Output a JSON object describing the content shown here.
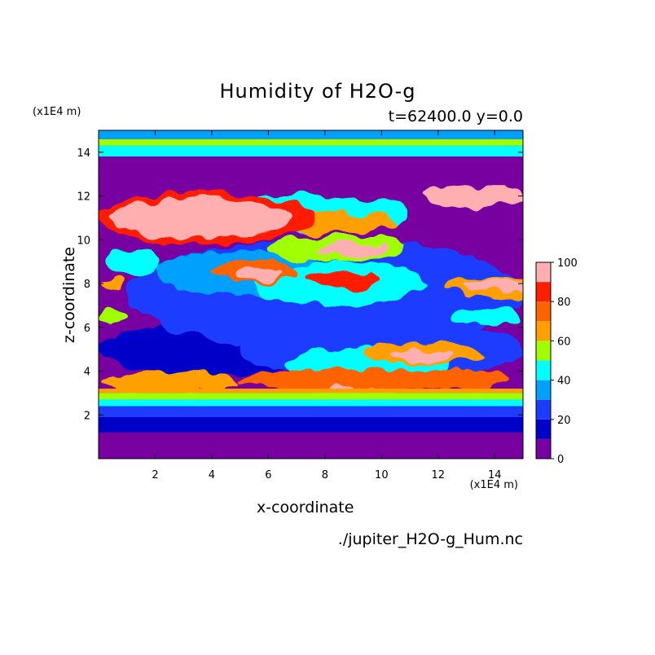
{
  "chart_data": {
    "type": "heatmap",
    "title": "Humidity of H2O-g",
    "subtitle": "t=62400.0 y=0.0",
    "xlabel": "x-coordinate",
    "ylabel": "z-coordinate",
    "x_unit": "(x1E4 m)",
    "y_unit": "(x1E4 m)",
    "xlim": [
      0,
      15
    ],
    "ylim": [
      0,
      15
    ],
    "x_ticks": [
      2,
      4,
      6,
      8,
      10,
      12,
      14
    ],
    "y_ticks": [
      2,
      4,
      6,
      8,
      10,
      12,
      14
    ],
    "colorbar": {
      "min": 0,
      "max": 100,
      "ticks": [
        0,
        20,
        40,
        60,
        80,
        100
      ],
      "levels": [
        {
          "from": 0,
          "to": 10,
          "color": "#7800a0"
        },
        {
          "from": 10,
          "to": 20,
          "color": "#0000c8"
        },
        {
          "from": 20,
          "to": 30,
          "color": "#1e3cff"
        },
        {
          "from": 30,
          "to": 40,
          "color": "#00a0ff"
        },
        {
          "from": 40,
          "to": 50,
          "color": "#00ffff"
        },
        {
          "from": 50,
          "to": 60,
          "color": "#a0ff00"
        },
        {
          "from": 60,
          "to": 70,
          "color": "#ffa000"
        },
        {
          "from": 70,
          "to": 80,
          "color": "#ff6400"
        },
        {
          "from": 80,
          "to": 90,
          "color": "#ff1e00"
        },
        {
          "from": 90,
          "to": 100,
          "color": "#ffafaf"
        }
      ]
    },
    "horizontal_bands": [
      {
        "z_from": 0.0,
        "z_to": 1.2,
        "value": 5
      },
      {
        "z_from": 1.2,
        "z_to": 1.9,
        "value": 15
      },
      {
        "z_from": 1.9,
        "z_to": 2.4,
        "value": 25
      },
      {
        "z_from": 2.4,
        "z_to": 2.7,
        "value": 45
      },
      {
        "z_from": 2.7,
        "z_to": 3.0,
        "value": 55
      },
      {
        "z_from": 3.0,
        "z_to": 3.2,
        "value": 65
      },
      {
        "z_from": 13.8,
        "z_to": 14.3,
        "value": 45
      },
      {
        "z_from": 14.3,
        "z_to": 14.6,
        "value": 55
      },
      {
        "z_from": 14.6,
        "z_to": 15.0,
        "value": 35
      },
      {
        "z_from": 12.5,
        "z_to": 13.8,
        "value": 5
      }
    ],
    "blobs": [
      {
        "x": 4.0,
        "z": 5.0,
        "rx": 4.0,
        "rz": 1.2,
        "value": 15
      },
      {
        "x": 10.0,
        "z": 5.0,
        "rx": 5.0,
        "rz": 1.3,
        "value": 25
      },
      {
        "x": 8.0,
        "z": 7.5,
        "rx": 7.0,
        "rz": 2.5,
        "value": 25
      },
      {
        "x": 5.0,
        "z": 8.5,
        "rx": 3.0,
        "rz": 1.0,
        "value": 35
      },
      {
        "x": 8.5,
        "z": 8.0,
        "rx": 3.0,
        "rz": 1.0,
        "value": 45
      },
      {
        "x": 8.5,
        "z": 9.6,
        "rx": 2.5,
        "rz": 0.6,
        "value": 55
      },
      {
        "x": 9.5,
        "z": 4.3,
        "rx": 3.0,
        "rz": 0.8,
        "value": 45
      },
      {
        "x": 2.5,
        "z": 3.5,
        "rx": 2.5,
        "rz": 0.5,
        "value": 65
      },
      {
        "x": 9.0,
        "z": 3.6,
        "rx": 4.0,
        "rz": 0.5,
        "value": 75
      },
      {
        "x": 12.5,
        "z": 3.6,
        "rx": 2.0,
        "rz": 0.45,
        "value": 70
      },
      {
        "x": 7.0,
        "z": 11.2,
        "rx": 4.0,
        "rz": 0.9,
        "value": 45
      },
      {
        "x": 8.0,
        "z": 10.8,
        "rx": 2.5,
        "rz": 0.5,
        "value": 65
      },
      {
        "x": 5.5,
        "z": 8.6,
        "rx": 1.5,
        "rz": 0.5,
        "value": 75
      },
      {
        "x": 8.7,
        "z": 8.2,
        "rx": 1.3,
        "rz": 0.35,
        "value": 80
      },
      {
        "x": 14.0,
        "z": 7.8,
        "rx": 1.8,
        "rz": 0.5,
        "value": 60
      },
      {
        "x": 11.5,
        "z": 4.8,
        "rx": 2.2,
        "rz": 0.5,
        "value": 65
      },
      {
        "x": 3.8,
        "z": 11.0,
        "rx": 3.8,
        "rz": 1.2,
        "value": 85
      },
      {
        "x": 3.6,
        "z": 11.0,
        "rx": 3.2,
        "rz": 0.9,
        "value": 95
      },
      {
        "x": 9.0,
        "z": 3.0,
        "rx": 1.5,
        "rz": 0.3,
        "value": 95
      },
      {
        "x": 9.0,
        "z": 9.5,
        "rx": 1.2,
        "rz": 0.3,
        "value": 95
      },
      {
        "x": 5.6,
        "z": 8.5,
        "rx": 0.8,
        "rz": 0.3,
        "value": 95
      },
      {
        "x": 11.5,
        "z": 4.7,
        "rx": 1.1,
        "rz": 0.3,
        "value": 95
      },
      {
        "x": 14.0,
        "z": 7.9,
        "rx": 1.2,
        "rz": 0.3,
        "value": 95
      },
      {
        "x": 13.3,
        "z": 12.0,
        "rx": 1.8,
        "rz": 0.5,
        "value": 95
      },
      {
        "x": 13.8,
        "z": 6.5,
        "rx": 1.3,
        "rz": 0.4,
        "value": 45
      },
      {
        "x": 1.2,
        "z": 9.0,
        "rx": 1.0,
        "rz": 0.6,
        "value": 45
      },
      {
        "x": 0.5,
        "z": 8.0,
        "rx": 0.4,
        "rz": 0.3,
        "value": 65
      },
      {
        "x": 0.5,
        "z": 6.5,
        "rx": 0.4,
        "rz": 0.3,
        "value": 55
      }
    ],
    "source_label": "./jupiter_H2O-g_Hum.nc"
  }
}
